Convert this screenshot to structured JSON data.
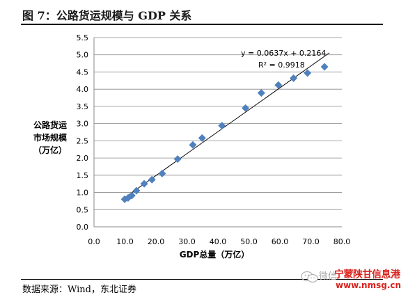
{
  "figure": {
    "title": "图 7：公路货运规模与 GDP 关系",
    "source": "数据来源：Wind，东北证券"
  },
  "watermark": {
    "wechat": "微信",
    "name": "宁蒙陕甘信息港",
    "site": "www.nmsg.cn",
    "icon": "wechat-icon"
  },
  "chart_data": {
    "type": "scatter",
    "xlabel": "GDP总量（万亿）",
    "ylabel_lines": [
      "公路货运",
      "市场规模",
      "（万亿）"
    ],
    "xlim": [
      0,
      80
    ],
    "ylim": [
      0,
      5.5
    ],
    "x_ticks": [
      "0.0",
      "10.0",
      "20.0",
      "30.0",
      "40.0",
      "50.0",
      "60.0",
      "70.0",
      "80.0"
    ],
    "y_ticks": [
      "0.0",
      "0.5",
      "1.0",
      "1.5",
      "2.0",
      "2.5",
      "3.0",
      "3.5",
      "4.0",
      "4.5",
      "5.0",
      "5.5"
    ],
    "grid": "horizontal",
    "marker": "diamond",
    "marker_color": "#4f81bd",
    "series": [
      {
        "points": [
          [
            9.9,
            0.8
          ],
          [
            11.0,
            0.84
          ],
          [
            12.2,
            0.91
          ],
          [
            13.7,
            1.05
          ],
          [
            16.2,
            1.25
          ],
          [
            18.7,
            1.37
          ],
          [
            22.0,
            1.55
          ],
          [
            27.0,
            1.97
          ],
          [
            31.9,
            2.38
          ],
          [
            34.9,
            2.58
          ],
          [
            41.3,
            2.94
          ],
          [
            48.9,
            3.45
          ],
          [
            54.0,
            3.89
          ],
          [
            59.5,
            4.12
          ],
          [
            64.4,
            4.32
          ],
          [
            68.9,
            4.47
          ],
          [
            74.4,
            4.65
          ]
        ]
      }
    ],
    "trendline": {
      "slope": 0.0637,
      "intercept": 0.2164,
      "x_range": [
        9.5,
        76.0
      ],
      "equation": "y = 0.0637x + 0.2164",
      "r_squared_label": "R² = 0.9918",
      "color": "#000000"
    }
  }
}
